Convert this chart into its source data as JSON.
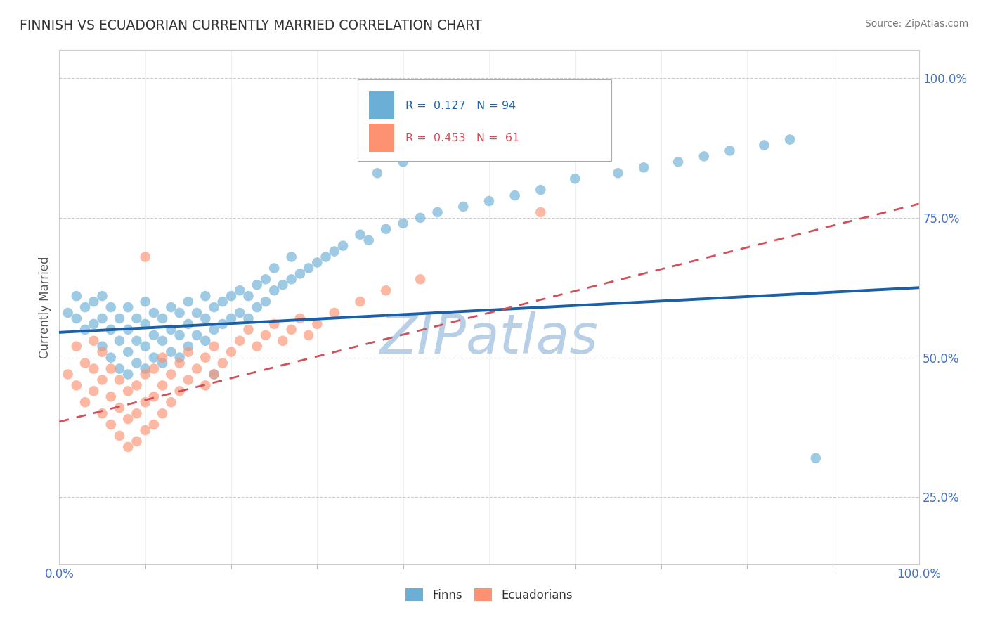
{
  "title": "FINNISH VS ECUADORIAN CURRENTLY MARRIED CORRELATION CHART",
  "source": "Source: ZipAtlas.com",
  "ylabel": "Currently Married",
  "finn_color": "#6baed6",
  "ecua_color": "#fc9272",
  "finn_line_color": "#1a5fa8",
  "ecua_line_color": "#d44f5a",
  "watermark": "ZIPatlas",
  "watermark_color": "#b8cfe8",
  "background_color": "#ffffff",
  "grid_color": "#cccccc",
  "xlim": [
    0.0,
    1.0
  ],
  "ylim": [
    0.13,
    1.05
  ],
  "yticks": [
    0.25,
    0.5,
    0.75,
    1.0
  ],
  "ytick_labels": [
    "25.0%",
    "50.0%",
    "75.0%",
    "100.0%"
  ],
  "finn_line_x0": 0.0,
  "finn_line_y0": 0.545,
  "finn_line_x1": 1.0,
  "finn_line_y1": 0.625,
  "ecua_line_x0": 0.0,
  "ecua_line_y0": 0.385,
  "ecua_line_x1": 1.0,
  "ecua_line_y1": 0.775,
  "finn_pts_x": [
    0.01,
    0.02,
    0.02,
    0.03,
    0.03,
    0.04,
    0.04,
    0.05,
    0.05,
    0.05,
    0.06,
    0.06,
    0.06,
    0.07,
    0.07,
    0.07,
    0.08,
    0.08,
    0.08,
    0.08,
    0.09,
    0.09,
    0.09,
    0.1,
    0.1,
    0.1,
    0.1,
    0.11,
    0.11,
    0.11,
    0.12,
    0.12,
    0.12,
    0.13,
    0.13,
    0.13,
    0.14,
    0.14,
    0.14,
    0.15,
    0.15,
    0.15,
    0.16,
    0.16,
    0.17,
    0.17,
    0.17,
    0.18,
    0.18,
    0.19,
    0.19,
    0.2,
    0.2,
    0.21,
    0.21,
    0.22,
    0.22,
    0.23,
    0.23,
    0.24,
    0.24,
    0.25,
    0.25,
    0.26,
    0.27,
    0.27,
    0.28,
    0.29,
    0.3,
    0.31,
    0.32,
    0.33,
    0.35,
    0.36,
    0.38,
    0.4,
    0.42,
    0.44,
    0.47,
    0.5,
    0.53,
    0.56,
    0.6,
    0.65,
    0.68,
    0.72,
    0.75,
    0.78,
    0.82,
    0.85,
    0.18,
    0.37,
    0.4,
    0.88
  ],
  "finn_pts_y": [
    0.58,
    0.57,
    0.61,
    0.55,
    0.59,
    0.56,
    0.6,
    0.52,
    0.57,
    0.61,
    0.5,
    0.55,
    0.59,
    0.48,
    0.53,
    0.57,
    0.47,
    0.51,
    0.55,
    0.59,
    0.49,
    0.53,
    0.57,
    0.48,
    0.52,
    0.56,
    0.6,
    0.5,
    0.54,
    0.58,
    0.49,
    0.53,
    0.57,
    0.51,
    0.55,
    0.59,
    0.5,
    0.54,
    0.58,
    0.52,
    0.56,
    0.6,
    0.54,
    0.58,
    0.53,
    0.57,
    0.61,
    0.55,
    0.59,
    0.56,
    0.6,
    0.57,
    0.61,
    0.58,
    0.62,
    0.57,
    0.61,
    0.59,
    0.63,
    0.6,
    0.64,
    0.62,
    0.66,
    0.63,
    0.64,
    0.68,
    0.65,
    0.66,
    0.67,
    0.68,
    0.69,
    0.7,
    0.72,
    0.71,
    0.73,
    0.74,
    0.75,
    0.76,
    0.77,
    0.78,
    0.79,
    0.8,
    0.82,
    0.83,
    0.84,
    0.85,
    0.86,
    0.87,
    0.88,
    0.89,
    0.47,
    0.83,
    0.85,
    0.32
  ],
  "ecua_pts_x": [
    0.01,
    0.02,
    0.02,
    0.03,
    0.03,
    0.04,
    0.04,
    0.04,
    0.05,
    0.05,
    0.05,
    0.06,
    0.06,
    0.06,
    0.07,
    0.07,
    0.07,
    0.08,
    0.08,
    0.08,
    0.09,
    0.09,
    0.09,
    0.1,
    0.1,
    0.1,
    0.11,
    0.11,
    0.11,
    0.12,
    0.12,
    0.12,
    0.13,
    0.13,
    0.14,
    0.14,
    0.15,
    0.15,
    0.16,
    0.17,
    0.17,
    0.18,
    0.18,
    0.19,
    0.2,
    0.21,
    0.22,
    0.23,
    0.24,
    0.25,
    0.26,
    0.27,
    0.28,
    0.29,
    0.3,
    0.32,
    0.35,
    0.38,
    0.42,
    0.56,
    0.1
  ],
  "ecua_pts_y": [
    0.47,
    0.45,
    0.52,
    0.42,
    0.49,
    0.44,
    0.48,
    0.53,
    0.4,
    0.46,
    0.51,
    0.38,
    0.43,
    0.48,
    0.36,
    0.41,
    0.46,
    0.34,
    0.39,
    0.44,
    0.35,
    0.4,
    0.45,
    0.37,
    0.42,
    0.47,
    0.38,
    0.43,
    0.48,
    0.4,
    0.45,
    0.5,
    0.42,
    0.47,
    0.44,
    0.49,
    0.46,
    0.51,
    0.48,
    0.45,
    0.5,
    0.47,
    0.52,
    0.49,
    0.51,
    0.53,
    0.55,
    0.52,
    0.54,
    0.56,
    0.53,
    0.55,
    0.57,
    0.54,
    0.56,
    0.58,
    0.6,
    0.62,
    0.64,
    0.76,
    0.68
  ]
}
